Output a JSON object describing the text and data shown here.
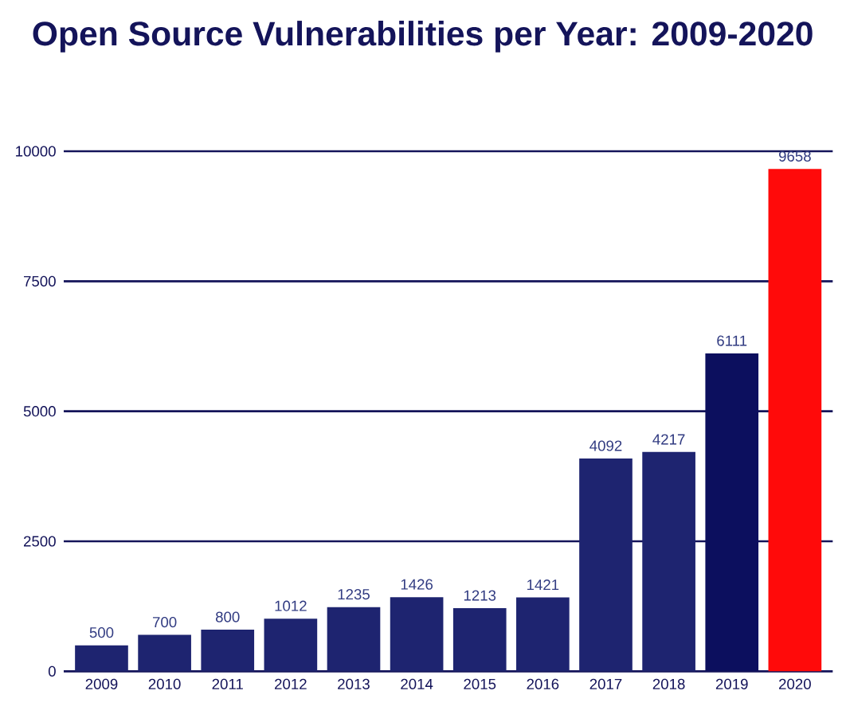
{
  "chart_data": {
    "type": "bar",
    "title": "Open Source Vulnerabilities per Year: 2009-2020",
    "categories": [
      "2009",
      "2010",
      "2011",
      "2012",
      "2013",
      "2014",
      "2015",
      "2016",
      "2017",
      "2018",
      "2019",
      "2020"
    ],
    "values": [
      500,
      700,
      800,
      1012,
      1235,
      1426,
      1213,
      1421,
      4092,
      4217,
      6111,
      9658
    ],
    "colors": [
      "#1e2470",
      "#1e2470",
      "#1e2470",
      "#1e2470",
      "#1e2470",
      "#1e2470",
      "#1e2470",
      "#1e2470",
      "#1e2470",
      "#1e2470",
      "#0c0f5e",
      "#ff0a0a"
    ],
    "ylim": [
      0,
      10000
    ],
    "yticks": [
      0,
      2500,
      5000,
      7500,
      10000
    ],
    "grid": "y",
    "data_labels": true
  }
}
